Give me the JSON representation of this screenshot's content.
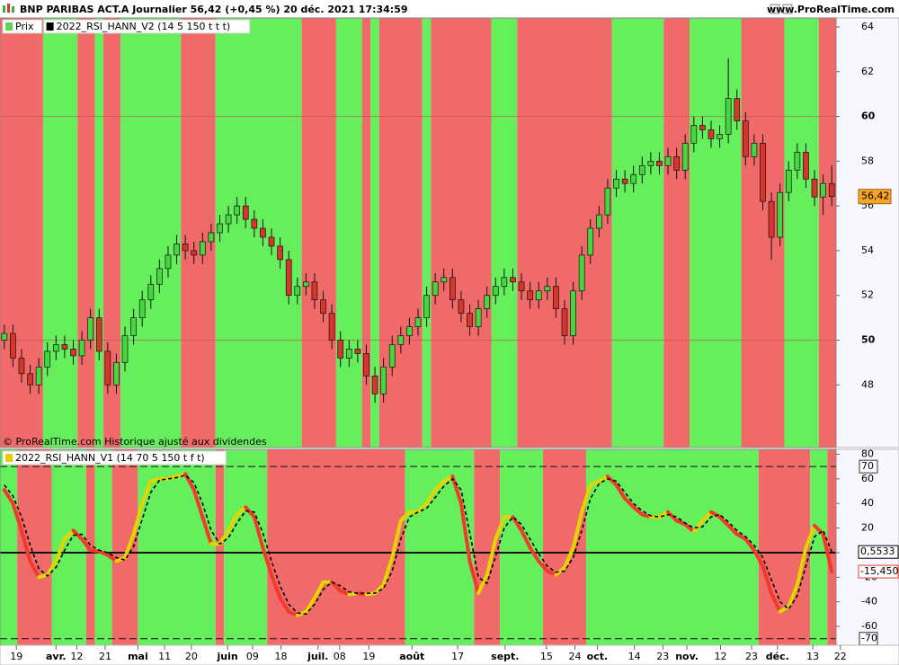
{
  "header": {
    "title": "BNP PARIBAS ACT.A Journalier 56,42 (+0,45 %) 20 déc. 2021 17:34:59",
    "site": "www.ProRealTime.com"
  },
  "chart_data": [
    {
      "type": "candlestick",
      "legend": [
        "Prix",
        "2022_RSI_HANN_V2 (14 5 150 t t t)"
      ],
      "legend_colors": [
        "#5fd35a",
        "#000000"
      ],
      "note": "© ProRealTime.com Historique ajusté aux dividendes",
      "up_color": "#46d640",
      "down_color": "#d8352c",
      "bands": {
        "colors": [
          "#f06a6a",
          "#66ef5c"
        ],
        "edges": [
          4.5,
          8.5,
          10.5,
          11.5,
          13.5,
          20.5,
          24.5,
          34.5,
          38.5,
          41.5,
          42.5,
          43.5,
          48.5,
          49.5,
          56.5,
          59.5,
          70.5,
          76.5,
          79.5,
          85.5,
          90.5,
          94.5
        ]
      },
      "xlim": [
        -0.5,
        96.5
      ],
      "ylim": [
        45.2,
        64.4
      ],
      "yticks": [
        48,
        50,
        52,
        54,
        56,
        58,
        60,
        62,
        64
      ],
      "grid_values": [
        50,
        60
      ],
      "last_price": {
        "value": 56.42,
        "label": "56,42"
      },
      "last_color": "#f6a623",
      "ohlc": [
        [
          50.0,
          50.7,
          49.6,
          50.3
        ],
        [
          50.3,
          50.7,
          48.8,
          49.2
        ],
        [
          49.2,
          49.6,
          48.1,
          48.5
        ],
        [
          48.5,
          48.9,
          47.6,
          48.0
        ],
        [
          48.0,
          49.2,
          47.6,
          48.8
        ],
        [
          48.8,
          49.9,
          48.4,
          49.5
        ],
        [
          49.5,
          50.2,
          49.1,
          49.8
        ],
        [
          49.8,
          50.2,
          49.2,
          49.6
        ],
        [
          49.6,
          50.0,
          48.9,
          49.3
        ],
        [
          49.3,
          50.4,
          48.9,
          50.0
        ],
        [
          50.0,
          51.4,
          49.6,
          51.0
        ],
        [
          51.0,
          51.4,
          49.1,
          49.5
        ],
        [
          49.5,
          49.9,
          47.6,
          48.0
        ],
        [
          48.0,
          49.4,
          47.6,
          49.0
        ],
        [
          49.0,
          50.6,
          48.6,
          50.2
        ],
        [
          50.2,
          51.4,
          49.8,
          51.0
        ],
        [
          51.0,
          52.2,
          50.6,
          51.8
        ],
        [
          51.8,
          52.9,
          51.4,
          52.5
        ],
        [
          52.5,
          53.6,
          52.1,
          53.2
        ],
        [
          53.2,
          54.2,
          52.8,
          53.8
        ],
        [
          53.8,
          54.7,
          53.4,
          54.3
        ],
        [
          54.3,
          54.7,
          53.6,
          54.0
        ],
        [
          54.0,
          54.4,
          53.4,
          53.8
        ],
        [
          53.8,
          54.8,
          53.4,
          54.4
        ],
        [
          54.4,
          55.2,
          54.0,
          54.8
        ],
        [
          54.8,
          55.6,
          54.4,
          55.2
        ],
        [
          55.2,
          56.0,
          54.8,
          55.6
        ],
        [
          55.6,
          56.4,
          55.2,
          56.0
        ],
        [
          56.0,
          56.4,
          55.0,
          55.4
        ],
        [
          55.4,
          55.8,
          54.6,
          55.0
        ],
        [
          55.0,
          55.4,
          54.2,
          54.6
        ],
        [
          54.6,
          55.0,
          53.8,
          54.2
        ],
        [
          54.2,
          54.6,
          53.2,
          53.6
        ],
        [
          53.6,
          54.0,
          51.6,
          52.0
        ],
        [
          52.0,
          52.8,
          51.6,
          52.4
        ],
        [
          52.4,
          53.0,
          52.0,
          52.6
        ],
        [
          52.6,
          53.0,
          51.4,
          51.8
        ],
        [
          51.8,
          52.2,
          50.8,
          51.2
        ],
        [
          51.2,
          51.6,
          49.6,
          50.0
        ],
        [
          50.0,
          50.4,
          48.8,
          49.2
        ],
        [
          49.2,
          50.0,
          48.8,
          49.6
        ],
        [
          49.6,
          50.0,
          49.0,
          49.4
        ],
        [
          49.4,
          49.8,
          48.0,
          48.4
        ],
        [
          48.4,
          48.8,
          47.2,
          47.6
        ],
        [
          47.6,
          49.2,
          47.2,
          48.8
        ],
        [
          48.8,
          50.2,
          48.4,
          49.8
        ],
        [
          49.8,
          50.6,
          49.4,
          50.2
        ],
        [
          50.2,
          51.0,
          49.8,
          50.6
        ],
        [
          50.6,
          51.4,
          50.2,
          51.0
        ],
        [
          51.0,
          52.4,
          50.6,
          52.0
        ],
        [
          52.0,
          53.0,
          51.6,
          52.6
        ],
        [
          52.6,
          53.2,
          52.2,
          52.8
        ],
        [
          52.8,
          53.2,
          51.4,
          51.8
        ],
        [
          51.8,
          52.2,
          50.8,
          51.2
        ],
        [
          51.2,
          51.6,
          50.2,
          50.6
        ],
        [
          50.6,
          51.8,
          50.2,
          51.4
        ],
        [
          51.4,
          52.4,
          51.0,
          52.0
        ],
        [
          52.0,
          52.8,
          51.6,
          52.4
        ],
        [
          52.4,
          53.2,
          52.0,
          52.8
        ],
        [
          52.8,
          53.2,
          52.2,
          52.6
        ],
        [
          52.6,
          53.0,
          51.8,
          52.2
        ],
        [
          52.2,
          52.6,
          51.4,
          51.8
        ],
        [
          51.8,
          52.6,
          51.4,
          52.2
        ],
        [
          52.2,
          52.8,
          51.8,
          52.4
        ],
        [
          52.4,
          52.8,
          51.0,
          51.4
        ],
        [
          51.4,
          51.8,
          49.8,
          50.2
        ],
        [
          50.2,
          52.6,
          49.8,
          52.2
        ],
        [
          52.2,
          54.2,
          51.8,
          53.8
        ],
        [
          53.8,
          55.4,
          53.4,
          55.0
        ],
        [
          55.0,
          56.0,
          54.6,
          55.6
        ],
        [
          55.6,
          57.2,
          55.2,
          56.8
        ],
        [
          56.8,
          57.6,
          56.4,
          57.2
        ],
        [
          57.2,
          57.6,
          56.6,
          57.0
        ],
        [
          57.0,
          57.8,
          56.6,
          57.4
        ],
        [
          57.4,
          58.2,
          57.0,
          57.8
        ],
        [
          57.8,
          58.4,
          57.4,
          58.0
        ],
        [
          58.0,
          58.4,
          57.4,
          57.8
        ],
        [
          57.8,
          58.6,
          57.4,
          58.2
        ],
        [
          58.2,
          58.6,
          57.2,
          57.6
        ],
        [
          57.6,
          59.2,
          57.2,
          58.8
        ],
        [
          58.8,
          60.0,
          58.4,
          59.6
        ],
        [
          59.6,
          60.0,
          59.0,
          59.4
        ],
        [
          59.4,
          59.8,
          58.6,
          59.0
        ],
        [
          59.0,
          59.6,
          58.6,
          59.2
        ],
        [
          59.2,
          62.6,
          58.8,
          60.8
        ],
        [
          60.8,
          61.2,
          59.4,
          59.8
        ],
        [
          59.8,
          60.2,
          57.8,
          58.2
        ],
        [
          58.2,
          59.2,
          57.8,
          58.8
        ],
        [
          58.8,
          59.2,
          55.8,
          56.2
        ],
        [
          56.2,
          56.6,
          53.6,
          54.6
        ],
        [
          54.6,
          57.0,
          54.2,
          56.6
        ],
        [
          56.6,
          58.0,
          56.2,
          57.6
        ],
        [
          57.6,
          58.8,
          57.2,
          58.4
        ],
        [
          58.4,
          58.8,
          56.8,
          57.2
        ],
        [
          57.2,
          57.6,
          56.0,
          56.4
        ],
        [
          56.4,
          57.4,
          55.6,
          57.0
        ],
        [
          57.0,
          57.8,
          56.0,
          56.42
        ]
      ]
    },
    {
      "type": "line",
      "legend": [
        "2022_RSI_HANN_V1 (14 70 5 150 t f t)"
      ],
      "legend_colors": [
        "#f0c800"
      ],
      "bands": {
        "colors": [
          "#66ef5c",
          "#f06a6a"
        ],
        "edges": [
          1.5,
          5.5,
          9.5,
          10.5,
          12.5,
          15.5,
          24.5,
          25.5,
          30.5,
          46.5,
          54.5,
          57.5,
          62.5,
          67.5,
          87.5,
          93.5,
          95.5
        ]
      },
      "xlim": [
        -0.5,
        96.5
      ],
      "ylim": [
        -75.3,
        84
      ],
      "yticks": [
        80,
        60,
        40,
        20,
        0,
        -20,
        -40,
        -60
      ],
      "levels": [
        70,
        -70
      ],
      "baseline": 0,
      "xticks": [
        {
          "value": 1.4,
          "label": "19"
        },
        {
          "value": 6.0,
          "label": "avr."
        },
        {
          "value": 8.4,
          "label": "12"
        },
        {
          "value": 11.7,
          "label": "21"
        },
        {
          "value": 15.5,
          "label": "mai"
        },
        {
          "value": 18.6,
          "label": "11"
        },
        {
          "value": 21.7,
          "label": "20"
        },
        {
          "value": 25.9,
          "label": "juin"
        },
        {
          "value": 28.8,
          "label": "09"
        },
        {
          "value": 32.1,
          "label": "18"
        },
        {
          "value": 36.4,
          "label": "juil."
        },
        {
          "value": 38.9,
          "label": "08"
        },
        {
          "value": 42.3,
          "label": "19"
        },
        {
          "value": 47.3,
          "label": "août"
        },
        {
          "value": 52.6,
          "label": "17"
        },
        {
          "value": 58.1,
          "label": "sept."
        },
        {
          "value": 62.9,
          "label": "15"
        },
        {
          "value": 66.2,
          "label": "24"
        },
        {
          "value": 68.8,
          "label": "oct."
        },
        {
          "value": 73.1,
          "label": "14"
        },
        {
          "value": 76.4,
          "label": "23"
        },
        {
          "value": 79.2,
          "label": "nov."
        },
        {
          "value": 83.1,
          "label": "12"
        },
        {
          "value": 86.7,
          "label": "23"
        },
        {
          "value": 89.7,
          "label": "déc."
        },
        {
          "value": 93.8,
          "label": "13"
        },
        {
          "value": 97.0,
          "label": "22"
        }
      ],
      "series": [
        {
          "color_up": "#e6d400",
          "color_down": "#f2392a",
          "values": [
            51,
            40,
            18,
            -7,
            -20,
            -18,
            -7,
            11,
            18,
            11,
            2,
            1,
            -2,
            -7,
            -4,
            15,
            40,
            58,
            60,
            60,
            62,
            64,
            51,
            29,
            7,
            7,
            18,
            31,
            37,
            29,
            4,
            -18,
            -37,
            -48,
            -51,
            -48,
            -37,
            -24,
            -24,
            -31,
            -34,
            -33,
            -34,
            -33,
            -26,
            -4,
            26,
            33,
            33,
            40,
            51,
            58,
            62,
            40,
            -7,
            -33,
            -18,
            11,
            29,
            29,
            18,
            4,
            -7,
            -15,
            -18,
            -12,
            4,
            33,
            55,
            58,
            62,
            55,
            44,
            37,
            31,
            29,
            29,
            33,
            26,
            23,
            17,
            26,
            33,
            29,
            22,
            15,
            11,
            2,
            -11,
            -33,
            -48,
            -44,
            -26,
            4,
            22,
            15,
            -15.45
          ]
        },
        {
          "color": "#000000",
          "values": [
            55,
            46,
            29,
            6,
            -13,
            -19,
            -12,
            2,
            14,
            15,
            6,
            2,
            0,
            -4,
            -6,
            5,
            27,
            49,
            59,
            60,
            61,
            63,
            57,
            40,
            18,
            7,
            12,
            24,
            34,
            33,
            16,
            -7,
            -27,
            -42,
            -49,
            -50,
            -42,
            -30,
            -24,
            -27,
            -32,
            -33,
            -33,
            -33,
            -29,
            -15,
            11,
            29,
            33,
            36,
            45,
            54,
            60,
            51,
            16,
            -20,
            -25,
            -3,
            20,
            29,
            23,
            11,
            -1,
            -11,
            -16,
            -15,
            -4,
            18,
            44,
            56,
            60,
            58,
            49,
            40,
            34,
            30,
            29,
            31,
            29,
            24,
            20,
            21,
            29,
            31,
            25,
            18,
            13,
            6,
            -4,
            -22,
            -40,
            -46,
            -35,
            -11,
            13,
            18,
            0.5533
          ]
        }
      ],
      "last_values": [
        {
          "value": 0.5533,
          "label": "0,5533"
        },
        {
          "value": -15.45,
          "label": "-15,450"
        }
      ],
      "last_colors": [
        "#000000",
        "#f2392a"
      ]
    }
  ]
}
